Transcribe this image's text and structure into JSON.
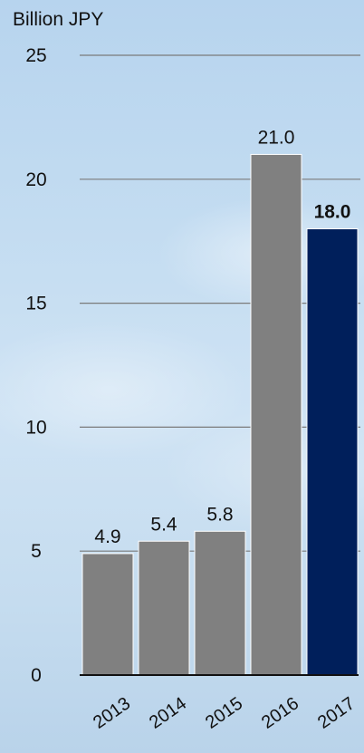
{
  "chart_data": {
    "type": "bar",
    "ylabel": "Billion JPY",
    "ylim": [
      0,
      25
    ],
    "yticks": [
      "0",
      "5",
      "10",
      "15",
      "20",
      "25"
    ],
    "categories": [
      "2013",
      "2014",
      "2015",
      "2016",
      "2017"
    ],
    "values": [
      4.9,
      5.4,
      5.8,
      21.0,
      18.0
    ],
    "value_labels": [
      "4.9",
      "5.4",
      "5.8",
      "21.0",
      "18.0"
    ],
    "grid": true,
    "colors": {
      "bar": "#808080",
      "highlight_bar": "#001f5b",
      "grid": "#7a7a7a",
      "axis": "#111111"
    },
    "highlight_index": 4
  }
}
